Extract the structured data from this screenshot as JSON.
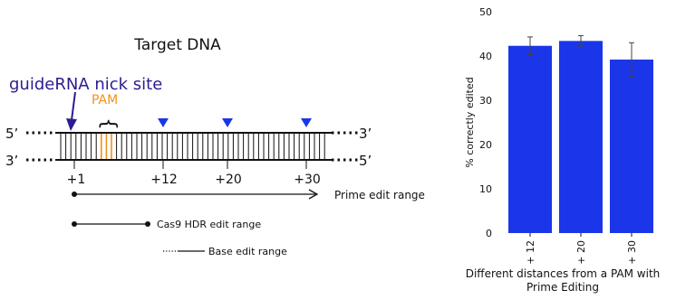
{
  "diagram": {
    "title": "Target DNA",
    "nick_label": "guideRNA nick site",
    "pam_label": "PAM",
    "brace": "{",
    "strand_top_left": "5’",
    "strand_top_right": "3’",
    "strand_bottom_left": "3’",
    "strand_bottom_right": "5’",
    "positions": [
      "+1",
      "+12",
      "+20",
      "+30"
    ],
    "ranges": [
      {
        "label": "Prime edit range"
      },
      {
        "label": "Cas9 HDR edit range"
      },
      {
        "label": "Base edit range"
      }
    ],
    "colors": {
      "nick": "#2b1d8f",
      "pam": "#f0921d",
      "marker": "#1a36e8",
      "line": "#111111"
    }
  },
  "chart_data": {
    "type": "bar",
    "categories": [
      "+ 12",
      "+ 20",
      "+ 30"
    ],
    "values": [
      42.3,
      43.4,
      39.2
    ],
    "errors": [
      2.0,
      1.2,
      3.8
    ],
    "ylim": [
      0,
      50
    ],
    "yticks": [
      0,
      10,
      20,
      30,
      40,
      50
    ],
    "ylabel": "% correctly edited",
    "xlabel": "Different distances from a PAM with Prime Editing",
    "xlabel_lines": [
      "Different distances from a PAM with",
      "Prime Editing"
    ],
    "bar_color": "#1a36e8",
    "grid": false
  }
}
